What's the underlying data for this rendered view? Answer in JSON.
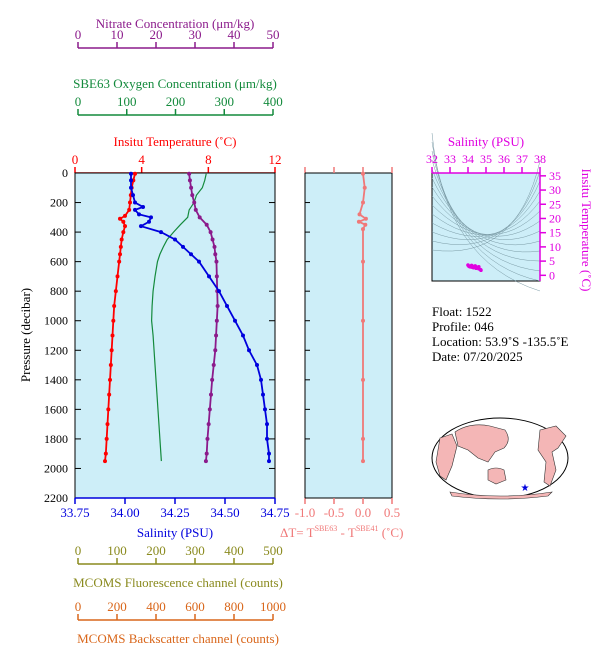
{
  "colors": {
    "nitrate": "#8b1a8b",
    "oxygen": "#138a3c",
    "temperature": "#ff0000",
    "salinity": "#0000dd",
    "fluorescence": "#8a8a1e",
    "backscatter": "#d9661a",
    "dt": "#f07878",
    "ts_axis": "#e000e0",
    "panel_bg": "#cdeef8",
    "land": "#f4b6b6"
  },
  "axes": {
    "nitrate": {
      "label": "Nitrate Concentration (μm/kg)",
      "ticks": [
        "0",
        "10",
        "20",
        "30",
        "40",
        "50"
      ]
    },
    "oxygen": {
      "label": "SBE63 Oxygen Concentration (μm/kg)",
      "ticks": [
        "0",
        "100",
        "200",
        "300",
        "400"
      ]
    },
    "temperature": {
      "label": "Insitu Temperature (˚C)",
      "ticks": [
        "0",
        "4",
        "8",
        "12"
      ]
    },
    "pressure": {
      "label": "Pressure (decibar)",
      "ticks": [
        "0",
        "200",
        "400",
        "600",
        "800",
        "1000",
        "1200",
        "1400",
        "1600",
        "1800",
        "2000",
        "2200"
      ]
    },
    "salinity": {
      "label": "Salinity (PSU)",
      "ticks": [
        "33.75",
        "34.00",
        "34.25",
        "34.50",
        "34.75"
      ]
    },
    "dt": {
      "label_main": "ΔT= T",
      "sup1": "SBE63",
      "label_mid": " - T",
      "sup2": "SBE41",
      "label_unit": " (˚C)",
      "ticks": [
        "-1.0",
        "-0.5",
        "0.0",
        "0.5"
      ]
    },
    "fluorescence": {
      "label": "MCOMS Fluorescence channel (counts)",
      "ticks": [
        "0",
        "100",
        "200",
        "300",
        "400",
        "500"
      ]
    },
    "backscatter": {
      "label": "MCOMS Backscatter channel (counts)",
      "ticks": [
        "0",
        "200",
        "400",
        "600",
        "800",
        "1000"
      ]
    },
    "ts_salinity": {
      "label": "Salinity (PSU)",
      "ticks": [
        "32",
        "33",
        "34",
        "35",
        "36",
        "37",
        "38"
      ]
    },
    "ts_temperature": {
      "label": "Insitu Temperature (˚C)",
      "ticks": [
        "0",
        "5",
        "10",
        "15",
        "20",
        "25",
        "30",
        "35"
      ]
    }
  },
  "info": {
    "float": "Float:  1522",
    "profile": "Profile:  046",
    "location": "Location:  53.9˚S  -135.5˚E",
    "date": "Date:  07/20/2025"
  },
  "chart_data": {
    "type": "line",
    "y_axis": {
      "label": "Pressure (decibar)",
      "range": [
        2200,
        0
      ]
    },
    "series": [
      {
        "name": "Insitu Temperature",
        "unit": "˚C",
        "xlim": [
          0,
          12
        ],
        "points": [
          [
            3.6,
            5
          ],
          [
            3.5,
            50
          ],
          [
            3.4,
            100
          ],
          [
            3.35,
            150
          ],
          [
            3.3,
            200
          ],
          [
            3.25,
            250
          ],
          [
            3.0,
            290
          ],
          [
            2.7,
            310
          ],
          [
            2.9,
            330
          ],
          [
            3.0,
            360
          ],
          [
            2.9,
            400
          ],
          [
            2.8,
            450
          ],
          [
            2.75,
            500
          ],
          [
            2.7,
            550
          ],
          [
            2.65,
            600
          ],
          [
            2.55,
            700
          ],
          [
            2.45,
            800
          ],
          [
            2.35,
            900
          ],
          [
            2.3,
            1000
          ],
          [
            2.25,
            1100
          ],
          [
            2.2,
            1200
          ],
          [
            2.15,
            1300
          ],
          [
            2.1,
            1400
          ],
          [
            2.05,
            1500
          ],
          [
            2.0,
            1600
          ],
          [
            1.95,
            1700
          ],
          [
            1.9,
            1800
          ],
          [
            1.85,
            1900
          ],
          [
            1.8,
            1950
          ]
        ]
      },
      {
        "name": "Salinity",
        "unit": "PSU",
        "xlim": [
          33.75,
          34.75
        ],
        "points": [
          [
            34.03,
            5
          ],
          [
            34.03,
            50
          ],
          [
            34.03,
            100
          ],
          [
            34.04,
            150
          ],
          [
            34.05,
            200
          ],
          [
            34.09,
            230
          ],
          [
            34.05,
            250
          ],
          [
            34.07,
            280
          ],
          [
            34.13,
            300
          ],
          [
            34.12,
            330
          ],
          [
            34.08,
            360
          ],
          [
            34.18,
            400
          ],
          [
            34.25,
            450
          ],
          [
            34.29,
            500
          ],
          [
            34.33,
            550
          ],
          [
            34.37,
            600
          ],
          [
            34.42,
            700
          ],
          [
            34.47,
            800
          ],
          [
            34.51,
            900
          ],
          [
            34.55,
            1000
          ],
          [
            34.59,
            1100
          ],
          [
            34.62,
            1200
          ],
          [
            34.66,
            1300
          ],
          [
            34.68,
            1400
          ],
          [
            34.69,
            1500
          ],
          [
            34.7,
            1600
          ],
          [
            34.71,
            1700
          ],
          [
            34.71,
            1800
          ],
          [
            34.72,
            1900
          ],
          [
            34.72,
            1950
          ]
        ]
      },
      {
        "name": "Nitrate Concentration",
        "unit": "μm/kg",
        "xlim": [
          0,
          50
        ],
        "points": [
          [
            28.5,
            5
          ],
          [
            28.7,
            50
          ],
          [
            29,
            100
          ],
          [
            29.3,
            150
          ],
          [
            29.8,
            200
          ],
          [
            30.2,
            250
          ],
          [
            31.2,
            300
          ],
          [
            33,
            350
          ],
          [
            34,
            400
          ],
          [
            34.5,
            450
          ],
          [
            35,
            500
          ],
          [
            35.2,
            550
          ],
          [
            35.5,
            600
          ],
          [
            35.6,
            700
          ],
          [
            35.7,
            800
          ],
          [
            35.8,
            900
          ],
          [
            35.6,
            1000
          ],
          [
            35.4,
            1100
          ],
          [
            35.2,
            1200
          ],
          [
            34.8,
            1300
          ],
          [
            34.4,
            1400
          ],
          [
            34.1,
            1500
          ],
          [
            33.8,
            1600
          ],
          [
            33.5,
            1700
          ],
          [
            33.2,
            1800
          ],
          [
            33,
            1900
          ],
          [
            32.8,
            1950
          ]
        ]
      },
      {
        "name": "SBE63 Oxygen Concentration",
        "unit": "μm/kg",
        "xlim": [
          0,
          400
        ],
        "points": [
          [
            263,
            5
          ],
          [
            260,
            50
          ],
          [
            255,
            100
          ],
          [
            243,
            150
          ],
          [
            238,
            200
          ],
          [
            228,
            250
          ],
          [
            225,
            300
          ],
          [
            210,
            350
          ],
          [
            196,
            400
          ],
          [
            183,
            450
          ],
          [
            175,
            500
          ],
          [
            168,
            550
          ],
          [
            163,
            600
          ],
          [
            158,
            700
          ],
          [
            154,
            800
          ],
          [
            152,
            900
          ],
          [
            151,
            1000
          ],
          [
            154,
            1100
          ],
          [
            156,
            1200
          ],
          [
            158,
            1300
          ],
          [
            160,
            1400
          ],
          [
            162,
            1500
          ],
          [
            164,
            1600
          ],
          [
            166,
            1700
          ],
          [
            168,
            1800
          ],
          [
            170,
            1900
          ],
          [
            171,
            1950
          ]
        ]
      },
      {
        "name": "ΔT= TSBE63 - TSBE41",
        "unit": "˚C",
        "xlim": [
          -1.0,
          0.5
        ],
        "points": [
          [
            0,
            5
          ],
          [
            0.03,
            100
          ],
          [
            0,
            200
          ],
          [
            -0.06,
            280
          ],
          [
            0.05,
            310
          ],
          [
            -0.07,
            330
          ],
          [
            0.04,
            350
          ],
          [
            0,
            380
          ],
          [
            0,
            600
          ],
          [
            0,
            1000
          ],
          [
            0,
            1400
          ],
          [
            0,
            1800
          ],
          [
            0,
            1950
          ]
        ]
      }
    ],
    "ts_diagram": {
      "x_label": "Salinity (PSU)",
      "y_label": "Insitu Temperature (˚C)",
      "xlim": [
        32,
        38
      ],
      "ylim": [
        -2,
        36
      ],
      "points": [
        [
          34.0,
          3.6
        ],
        [
          34.05,
          3.2
        ],
        [
          34.1,
          3.0
        ],
        [
          34.2,
          2.9
        ],
        [
          34.3,
          2.7
        ],
        [
          34.45,
          2.5
        ],
        [
          34.6,
          2.3
        ],
        [
          34.7,
          2.0
        ],
        [
          34.72,
          1.8
        ],
        [
          34.6,
          3.0
        ],
        [
          34.4,
          3.3
        ],
        [
          34.2,
          3.5
        ]
      ]
    }
  }
}
